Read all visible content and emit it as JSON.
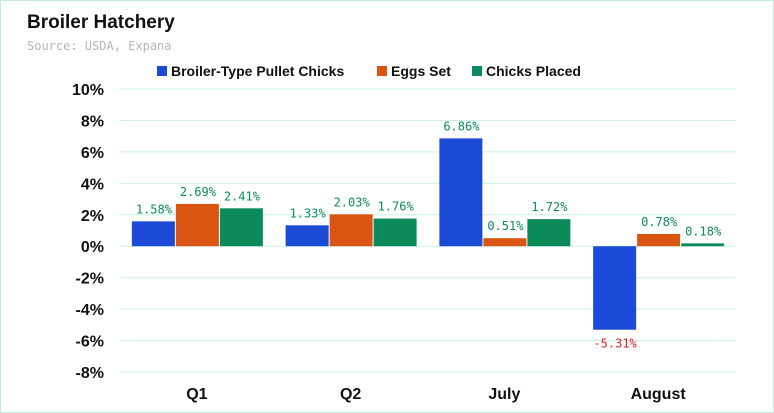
{
  "title": "Broiler Hatchery",
  "subtitle": "Source: USDA, Expana",
  "colors": {
    "series": [
      "#1a4ad6",
      "#d95511",
      "#0b8a5c"
    ],
    "positive_label": "#0b8a5c",
    "negative_label": "#e02020",
    "grid": "#c9f1e6"
  },
  "chart_data": {
    "type": "bar",
    "categories": [
      "Q1",
      "Q2",
      "July",
      "August"
    ],
    "series": [
      {
        "name": "Broiler-Type Pullet Chicks",
        "values": [
          1.58,
          1.33,
          6.86,
          -5.31
        ]
      },
      {
        "name": "Eggs Set",
        "values": [
          2.69,
          2.03,
          0.51,
          0.78
        ]
      },
      {
        "name": "Chicks Placed",
        "values": [
          2.41,
          1.76,
          1.72,
          0.18
        ]
      }
    ],
    "data_labels": [
      [
        "1.58%",
        "1.33%",
        "6.86%",
        "-5.31%"
      ],
      [
        "2.69%",
        "2.03%",
        "0.51%",
        "0.78%"
      ],
      [
        "2.41%",
        "1.76%",
        "1.72%",
        "0.18%"
      ]
    ],
    "ylim": [
      -8,
      10
    ],
    "yticks": [
      10,
      8,
      6,
      4,
      2,
      0,
      -2,
      -4,
      -6,
      -8
    ],
    "ytick_labels": [
      "10%",
      "8%",
      "6%",
      "4%",
      "2%",
      "0%",
      "-2%",
      "-4%",
      "-6%",
      "-8%"
    ],
    "grid": true,
    "legend_position": "top"
  }
}
